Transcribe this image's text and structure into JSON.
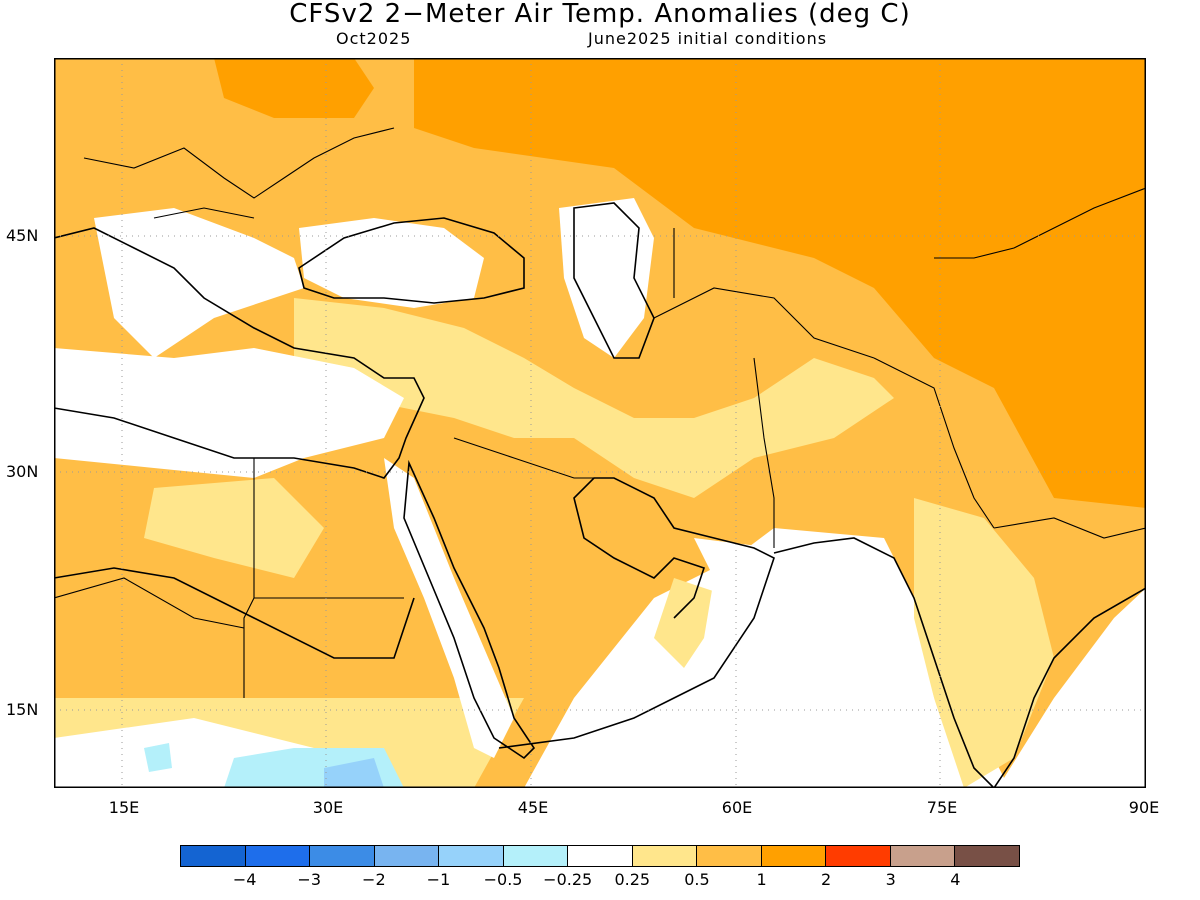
{
  "header": {
    "title": "CFSv2 2−Meter Air Temp. Anomalies (deg C)",
    "valid_month": "Oct2025",
    "initial_conditions": "June2025 initial conditions"
  },
  "map": {
    "lon_range": [
      10,
      90
    ],
    "lat_range": [
      10,
      54
    ],
    "lat_labels": [
      "45N",
      "30N",
      "15N"
    ],
    "lon_labels": [
      "15E",
      "30E",
      "45E",
      "60E",
      "75E",
      "90E"
    ],
    "grid": "dotted",
    "regions": {
      "strong_warm": "Central Asia / Russia / Tibet / eastern Europe",
      "moderate_warm": "Europe, Middle East, Arabia, Sahara, South Asia",
      "near_zero": "Seas, Red Sea, Arabian Sea, Sahel",
      "cool": "Ethiopian highlands / Sudan"
    }
  },
  "legend": {
    "labels": [
      "−4",
      "−3",
      "−2",
      "−1",
      "−0.5",
      "−0.25",
      "0.25",
      "0.5",
      "1",
      "2",
      "3",
      "4"
    ],
    "colors": [
      "#1464d2",
      "#1e6eeb",
      "#3c8ce6",
      "#78b4f0",
      "#96d2fa",
      "#b4f0fa",
      "#ffffff",
      "#ffe68c",
      "#ffbe46",
      "#ffa000",
      "#ff3c00",
      "#c8a08c",
      "#785046"
    ]
  }
}
